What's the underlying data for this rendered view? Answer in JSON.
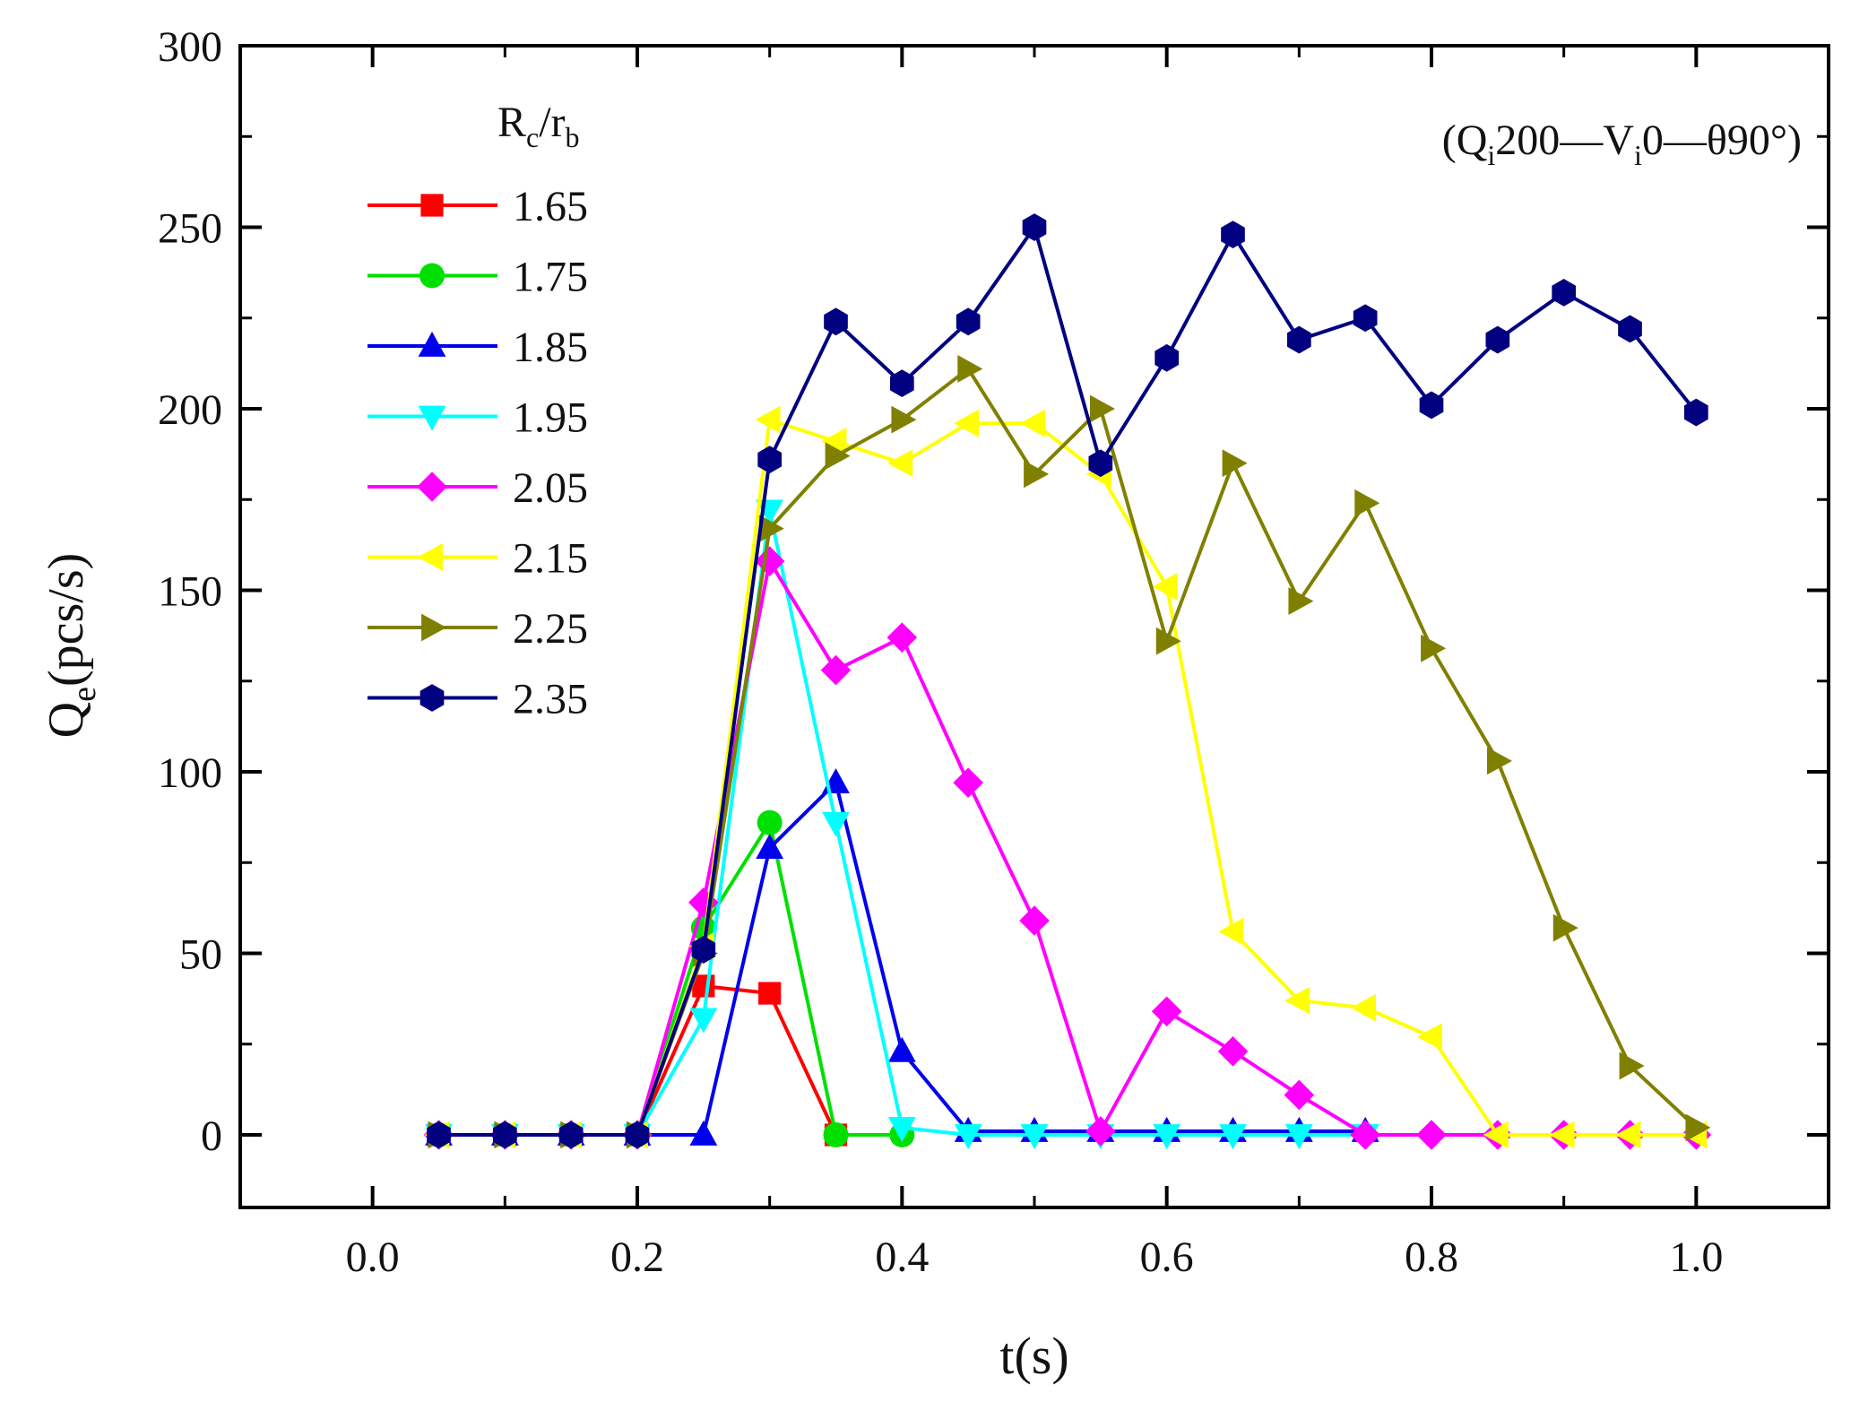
{
  "chart_data": {
    "type": "line",
    "title": "",
    "annotation": {
      "open": "(",
      "q_main": "Q",
      "q_sub": "i",
      "q_value": "200",
      "dash1": "—",
      "v_main": "V",
      "v_sub": "i",
      "v_value": "0",
      "dash2": "—",
      "theta": "θ90°",
      "close": ")"
    },
    "xlabel": "t(s)",
    "ylabel": {
      "main": "Q",
      "sub": "e",
      "unit": "(pcs/s)"
    },
    "legend_title": {
      "main1": "R",
      "sub1": "c",
      "slash": "/r",
      "sub2": "b"
    },
    "legend_position": "top-left",
    "xlim": [
      -0.1,
      1.1
    ],
    "ylim": [
      -20,
      300
    ],
    "x_ticks": [
      0.0,
      0.2,
      0.4,
      0.6,
      0.8,
      1.0
    ],
    "x_tick_labels": [
      "0.0",
      "0.2",
      "0.4",
      "0.6",
      "0.8",
      "1.0"
    ],
    "y_ticks": [
      0,
      50,
      100,
      150,
      200,
      250,
      300
    ],
    "y_tick_labels": [
      "0",
      "50",
      "100",
      "150",
      "200",
      "250",
      "300"
    ],
    "grid": false,
    "x": [
      0.05,
      0.1,
      0.15,
      0.2,
      0.25,
      0.3,
      0.35,
      0.4,
      0.45,
      0.5,
      0.55,
      0.6,
      0.65,
      0.7,
      0.75,
      0.8,
      0.85,
      0.9,
      0.95,
      1.0
    ],
    "series": [
      {
        "name": "1.65",
        "color": "#ff0000",
        "marker": "square",
        "values": [
          0,
          0,
          0,
          0,
          41,
          39,
          0,
          null,
          null,
          null,
          null,
          null,
          null,
          null,
          null,
          null,
          null,
          null,
          null,
          null
        ]
      },
      {
        "name": "1.75",
        "color": "#00e000",
        "marker": "circle",
        "values": [
          0,
          0,
          0,
          0,
          57,
          86,
          0,
          0,
          null,
          null,
          null,
          null,
          null,
          null,
          null,
          null,
          null,
          null,
          null,
          null
        ]
      },
      {
        "name": "1.85",
        "color": "#0000ee",
        "marker": "triangle-up",
        "values": [
          0,
          0,
          0,
          0,
          0,
          79,
          97,
          23,
          1,
          1,
          1,
          1,
          1,
          1,
          1,
          null,
          null,
          null,
          null,
          null
        ]
      },
      {
        "name": "1.95",
        "color": "#00ffff",
        "marker": "triangle-down",
        "values": [
          0,
          0,
          0,
          0,
          32,
          172,
          86,
          2,
          0,
          0,
          0,
          0,
          0,
          0,
          0,
          null,
          null,
          null,
          null,
          null
        ]
      },
      {
        "name": "2.05",
        "color": "#ff00ff",
        "marker": "diamond",
        "values": [
          0,
          0,
          0,
          0,
          64,
          158,
          128,
          137,
          97,
          59,
          1,
          34,
          23,
          11,
          0,
          0,
          0,
          0,
          0,
          0
        ]
      },
      {
        "name": "2.15",
        "color": "#ffff00",
        "marker": "triangle-left",
        "values": [
          0,
          0,
          0,
          0,
          52,
          197,
          191,
          185,
          196,
          196,
          182,
          151,
          56,
          37,
          35,
          27,
          0,
          0,
          0,
          0
        ]
      },
      {
        "name": "2.25",
        "color": "#808000",
        "marker": "triangle-right",
        "values": [
          0,
          0,
          0,
          0,
          50,
          167,
          187,
          197,
          211,
          182,
          200,
          136,
          185,
          147,
          174,
          134,
          103,
          57,
          19,
          2
        ]
      },
      {
        "name": "2.35",
        "color": "#000080",
        "marker": "hexagon",
        "values": [
          0,
          0,
          0,
          0,
          51,
          186,
          224,
          207,
          224,
          250,
          185,
          214,
          248,
          219,
          225,
          201,
          219,
          232,
          222,
          199
        ]
      }
    ]
  }
}
